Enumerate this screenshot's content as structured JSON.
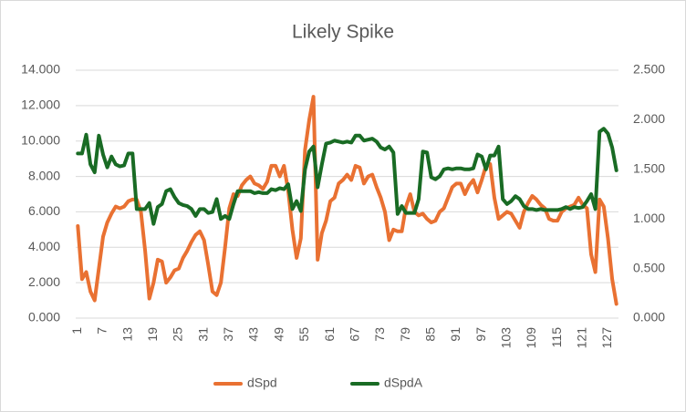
{
  "chart_data": {
    "type": "line",
    "title": "Likely Spike",
    "categories": [
      1,
      null,
      null,
      null,
      null,
      null,
      7,
      null,
      null,
      null,
      null,
      null,
      13,
      null,
      null,
      null,
      null,
      null,
      19,
      null,
      null,
      null,
      null,
      null,
      25,
      null,
      null,
      null,
      null,
      null,
      31,
      null,
      null,
      null,
      null,
      null,
      37,
      null,
      null,
      null,
      null,
      null,
      43,
      null,
      null,
      null,
      null,
      null,
      49,
      null,
      null,
      null,
      null,
      null,
      55,
      null,
      null,
      null,
      null,
      null,
      61,
      null,
      null,
      null,
      null,
      null,
      67,
      null,
      null,
      null,
      null,
      null,
      73,
      null,
      null,
      null,
      null,
      null,
      79,
      null,
      null,
      null,
      null,
      null,
      85,
      null,
      null,
      null,
      null,
      null,
      91,
      null,
      null,
      null,
      null,
      null,
      97,
      null,
      null,
      null,
      null,
      null,
      103,
      null,
      null,
      null,
      null,
      null,
      109,
      null,
      null,
      null,
      null,
      null,
      115,
      null,
      null,
      null,
      null,
      null,
      121,
      null,
      null,
      null,
      null,
      null,
      127,
      null,
      null
    ],
    "series": [
      {
        "name": "dSpd",
        "color": "#e97132",
        "values": [
          5.2,
          2.2,
          2.6,
          1.5,
          1.0,
          2.8,
          4.6,
          5.4,
          5.9,
          6.3,
          6.2,
          6.3,
          6.6,
          6.7,
          6.7,
          6.0,
          3.8,
          1.1,
          2.0,
          3.3,
          3.2,
          2.0,
          2.3,
          2.7,
          2.8,
          3.4,
          3.8,
          4.3,
          4.7,
          4.9,
          4.4,
          3.0,
          1.5,
          1.3,
          2.0,
          4.0,
          6.2,
          7.0,
          6.9,
          7.5,
          7.8,
          8.0,
          7.6,
          7.5,
          7.3,
          7.7,
          8.6,
          8.6,
          8.0,
          8.6,
          7.2,
          5.0,
          3.4,
          4.5,
          9.5,
          11.2,
          12.5,
          3.3,
          4.8,
          5.5,
          6.6,
          6.8,
          7.6,
          7.8,
          8.1,
          7.8,
          8.6,
          8.5,
          7.6,
          8.0,
          8.1,
          7.4,
          6.8,
          6.0,
          4.4,
          5.0,
          4.9,
          4.9,
          6.3,
          7.0,
          6.0,
          5.8,
          5.9,
          5.6,
          5.4,
          5.5,
          6.0,
          6.2,
          6.8,
          7.4,
          7.6,
          7.6,
          7.0,
          7.5,
          7.8,
          7.1,
          7.8,
          8.6,
          8.7,
          6.8,
          5.6,
          5.8,
          6.0,
          5.9,
          5.5,
          5.1,
          6.0,
          6.5,
          6.9,
          6.7,
          6.4,
          6.2,
          5.6,
          5.5,
          5.5,
          6.0,
          6.2,
          6.3,
          6.4,
          6.8,
          6.4,
          6.2,
          3.6,
          2.6,
          6.7,
          6.3,
          4.5,
          2.2,
          0.8
        ]
      },
      {
        "name": "dSpdA",
        "color": "#196b24",
        "axis": "y2",
        "values": [
          1.66,
          1.66,
          1.85,
          1.55,
          1.47,
          1.84,
          1.65,
          1.52,
          1.63,
          1.55,
          1.53,
          1.54,
          1.66,
          1.66,
          1.1,
          1.1,
          1.1,
          1.16,
          0.95,
          1.12,
          1.15,
          1.28,
          1.3,
          1.22,
          1.16,
          1.14,
          1.13,
          1.1,
          1.03,
          1.1,
          1.1,
          1.06,
          1.07,
          1.2,
          1.0,
          1.03,
          1.0,
          1.15,
          1.28,
          1.28,
          1.28,
          1.28,
          1.26,
          1.27,
          1.26,
          1.26,
          1.3,
          1.29,
          1.31,
          1.3,
          1.35,
          1.1,
          1.18,
          1.08,
          1.5,
          1.68,
          1.73,
          1.32,
          1.55,
          1.76,
          1.77,
          1.79,
          1.78,
          1.77,
          1.78,
          1.77,
          1.84,
          1.84,
          1.79,
          1.8,
          1.81,
          1.78,
          1.72,
          1.7,
          1.73,
          1.67,
          1.05,
          1.13,
          1.06,
          1.06,
          1.06,
          1.2,
          1.68,
          1.67,
          1.42,
          1.4,
          1.43,
          1.5,
          1.51,
          1.5,
          1.51,
          1.51,
          1.5,
          1.5,
          1.51,
          1.65,
          1.63,
          1.5,
          1.64,
          1.64,
          1.73,
          1.2,
          1.15,
          1.18,
          1.23,
          1.2,
          1.13,
          1.1,
          1.1,
          1.09,
          1.1,
          1.09,
          1.09,
          1.09,
          1.09,
          1.1,
          1.12,
          1.1,
          1.12,
          1.11,
          1.12,
          1.18,
          1.25,
          1.1,
          1.88,
          1.91,
          1.86,
          1.72,
          1.49
        ]
      }
    ],
    "ylim": [
      0,
      14
    ],
    "yticks": [
      {
        "value": 0,
        "label": "0.000"
      },
      {
        "value": 2,
        "label": "2.000"
      },
      {
        "value": 4,
        "label": "4.000"
      },
      {
        "value": 6,
        "label": "6.000"
      },
      {
        "value": 8,
        "label": "8.000"
      },
      {
        "value": 10,
        "label": "10.000"
      },
      {
        "value": 12,
        "label": "12.000"
      },
      {
        "value": 14,
        "label": "14.000"
      }
    ],
    "y2lim": [
      0,
      2.5
    ],
    "y2ticks": [
      {
        "value": 0,
        "label": "0.000"
      },
      {
        "value": 0.5,
        "label": "0.500"
      },
      {
        "value": 1,
        "label": "1.000"
      },
      {
        "value": 1.5,
        "label": "1.500"
      },
      {
        "value": 2,
        "label": "2.000"
      },
      {
        "value": 2.5,
        "label": "2.500"
      }
    ],
    "grid": true,
    "legend": "bottom"
  }
}
